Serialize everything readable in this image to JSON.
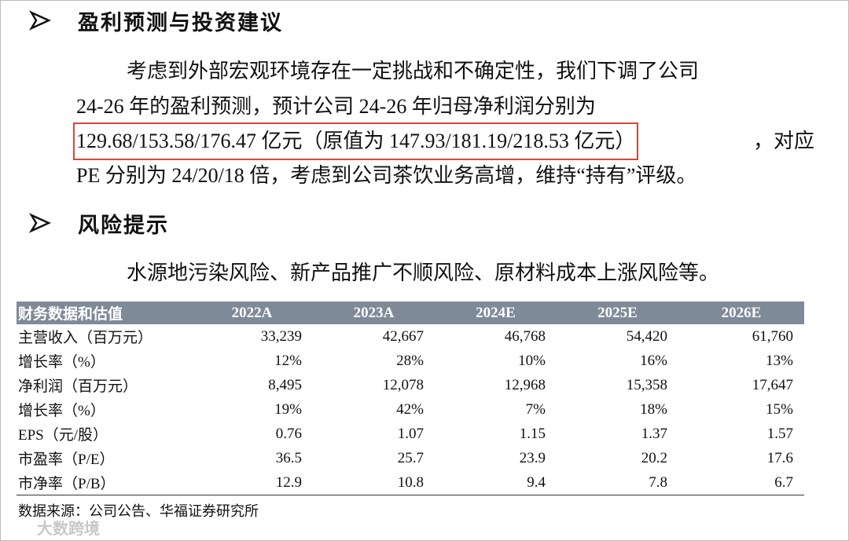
{
  "sections": [
    {
      "heading": "盈利预测与投资建议",
      "lines": [
        [
          "考虑到外部宏观环境存在一定挑战和不确定性，我们下调了公司"
        ],
        [
          "24-26 年的盈利预测，预计公司 24-26 年归母净利润分别为"
        ],
        [
          "129.68/153.58/176.47 亿元（原值为 147.93/181.19/218.53 亿元）",
          "，对应"
        ],
        [
          "PE 分别为 24/20/18 倍，考虑到公司茶饮业务高增，维持“持有”评级。"
        ]
      ]
    },
    {
      "heading": "风险提示",
      "lines": [
        [
          "水源地污染风险、新产品推广不顺风险、原材料成本上涨风险等。"
        ]
      ]
    }
  ],
  "table": {
    "header": [
      "财务数据和估值",
      "2022A",
      "2023A",
      "2024E",
      "2025E",
      "2026E"
    ],
    "rows": [
      [
        "主营收入（百万元）",
        "33,239",
        "42,667",
        "46,768",
        "54,420",
        "61,760"
      ],
      [
        "增长率（%）",
        "12%",
        "28%",
        "10%",
        "16%",
        "13%"
      ],
      [
        "净利润（百万元）",
        "8,495",
        "12,078",
        "12,968",
        "15,358",
        "17,647"
      ],
      [
        "增长率（%）",
        "19%",
        "42%",
        "7%",
        "18%",
        "15%"
      ],
      [
        "EPS（元/股）",
        "0.76",
        "1.07",
        "1.15",
        "1.37",
        "1.57"
      ],
      [
        "市盈率（P/E）",
        "36.5",
        "25.7",
        "23.9",
        "20.2",
        "17.6"
      ],
      [
        "市净率（P/B）",
        "12.9",
        "10.8",
        "9.4",
        "7.8",
        "6.7"
      ]
    ],
    "source": "数据来源：公司公告、华福证券研究所"
  },
  "watermark": "大数跨境"
}
